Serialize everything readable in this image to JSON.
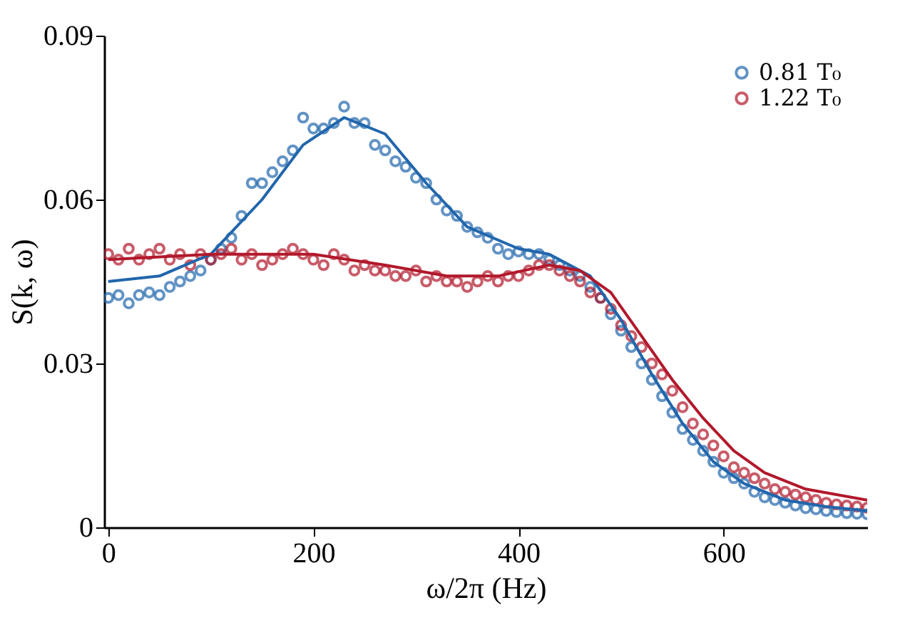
{
  "chart_data": {
    "type": "scatter",
    "xlabel": "ω/2π (Hz)",
    "ylabel": "S(k, ω)",
    "xlim": [
      -4,
      740
    ],
    "xticks": [
      0,
      200,
      400,
      600
    ],
    "ylim": [
      0,
      0.09
    ],
    "yticks": [
      0,
      0.03,
      0.06,
      0.09
    ],
    "grid": false,
    "legend": "top right",
    "marker": "circle",
    "x": [
      0,
      10,
      20,
      30,
      40,
      50,
      60,
      70,
      80,
      90,
      100,
      110,
      120,
      130,
      140,
      150,
      160,
      170,
      180,
      190,
      200,
      210,
      220,
      230,
      240,
      250,
      260,
      270,
      280,
      290,
      300,
      310,
      320,
      330,
      340,
      350,
      360,
      370,
      380,
      390,
      400,
      410,
      420,
      430,
      440,
      450,
      460,
      470,
      480,
      490,
      500,
      510,
      520,
      530,
      540,
      550,
      560,
      570,
      580,
      590,
      600,
      610,
      620,
      630,
      640,
      650,
      660,
      670,
      680,
      690,
      700,
      710,
      720,
      730,
      740
    ],
    "series": [
      {
        "name": "0.81 T₀",
        "color": "#2166ac",
        "values": [
          0.042,
          0.0425,
          0.041,
          0.0425,
          0.043,
          0.0425,
          0.044,
          0.045,
          0.046,
          0.047,
          0.049,
          0.051,
          0.053,
          0.057,
          0.063,
          0.063,
          0.065,
          0.067,
          0.069,
          0.075,
          0.073,
          0.073,
          0.074,
          0.077,
          0.074,
          0.074,
          0.07,
          0.069,
          0.067,
          0.066,
          0.064,
          0.063,
          0.06,
          0.058,
          0.057,
          0.055,
          0.054,
          0.053,
          0.051,
          0.05,
          0.0505,
          0.05,
          0.05,
          0.049,
          0.048,
          0.047,
          0.046,
          0.044,
          0.042,
          0.039,
          0.036,
          0.033,
          0.03,
          0.027,
          0.024,
          0.021,
          0.018,
          0.016,
          0.014,
          0.012,
          0.01,
          0.009,
          0.008,
          0.0065,
          0.0055,
          0.005,
          0.0045,
          0.004,
          0.0035,
          0.0033,
          0.003,
          0.0028,
          0.0026,
          0.0025,
          0.0024
        ]
      },
      {
        "name": "1.22 T₀",
        "color": "#b2182b",
        "values": [
          0.05,
          0.049,
          0.051,
          0.049,
          0.05,
          0.051,
          0.049,
          0.05,
          0.048,
          0.05,
          0.049,
          0.05,
          0.051,
          0.049,
          0.05,
          0.048,
          0.049,
          0.05,
          0.051,
          0.05,
          0.049,
          0.048,
          0.05,
          0.049,
          0.047,
          0.048,
          0.047,
          0.047,
          0.046,
          0.046,
          0.047,
          0.045,
          0.046,
          0.045,
          0.045,
          0.044,
          0.045,
          0.046,
          0.045,
          0.046,
          0.046,
          0.047,
          0.048,
          0.048,
          0.047,
          0.046,
          0.045,
          0.043,
          0.042,
          0.04,
          0.037,
          0.035,
          0.033,
          0.03,
          0.028,
          0.025,
          0.022,
          0.019,
          0.017,
          0.015,
          0.013,
          0.011,
          0.01,
          0.009,
          0.008,
          0.007,
          0.0065,
          0.006,
          0.0055,
          0.005,
          0.0045,
          0.0042,
          0.004,
          0.0038,
          0.0036
        ]
      },
      {
        "type": "line",
        "marker": "none",
        "line_style": "solid",
        "color": "#2166ac",
        "x": [
          0,
          50,
          100,
          150,
          190,
          230,
          270,
          310,
          350,
          400,
          430,
          470,
          500,
          530,
          560,
          590,
          620,
          660,
          700,
          740
        ],
        "values": [
          0.045,
          0.046,
          0.05,
          0.06,
          0.07,
          0.075,
          0.072,
          0.063,
          0.055,
          0.051,
          0.05,
          0.046,
          0.038,
          0.028,
          0.019,
          0.012,
          0.008,
          0.005,
          0.0038,
          0.003
        ]
      },
      {
        "type": "line",
        "marker": "none",
        "line_style": "solid",
        "color": "#b2182b",
        "x": [
          0,
          50,
          100,
          150,
          200,
          270,
          330,
          380,
          430,
          460,
          490,
          520,
          550,
          580,
          610,
          640,
          680,
          740
        ],
        "values": [
          0.049,
          0.0495,
          0.05,
          0.05,
          0.05,
          0.048,
          0.046,
          0.046,
          0.048,
          0.047,
          0.043,
          0.035,
          0.027,
          0.02,
          0.014,
          0.01,
          0.007,
          0.005
        ]
      }
    ]
  }
}
